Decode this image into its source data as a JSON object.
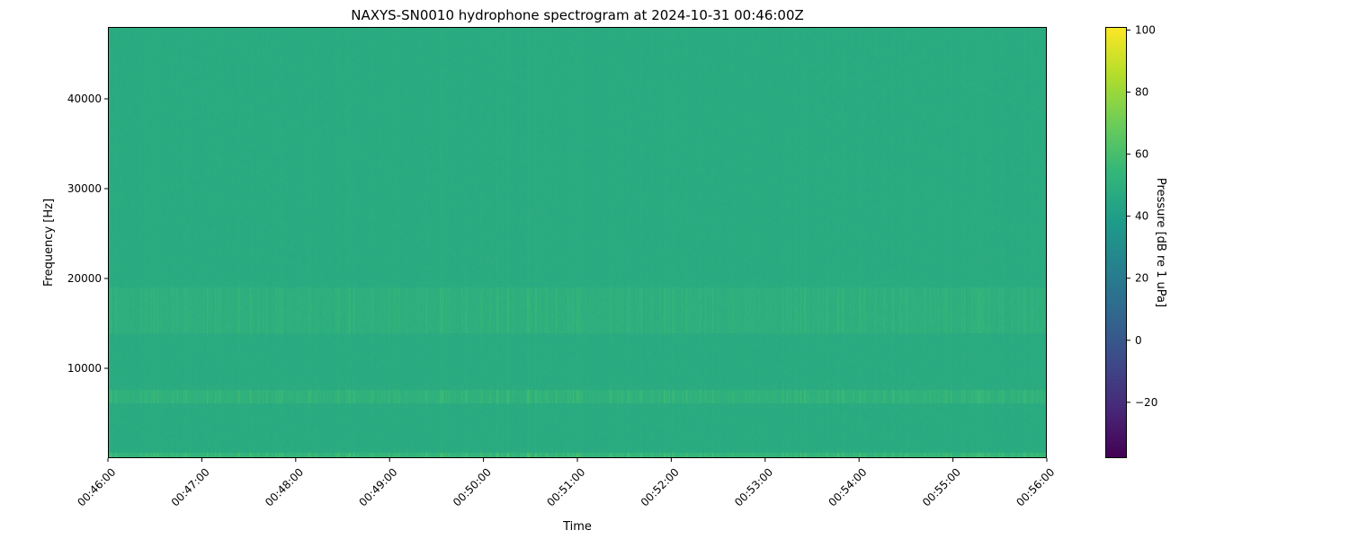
{
  "chart_data": {
    "type": "heatmap",
    "title": "NAXYS-SN0010 hydrophone spectrogram at 2024-10-31 00:46:00Z",
    "xlabel": "Time",
    "ylabel": "Frequency [Hz]",
    "colorbar_label": "Pressure [dB re 1 uPa]",
    "colormap": "viridis",
    "xlim": [
      "00:46:00",
      "00:56:00"
    ],
    "ylim": [
      0,
      48000
    ],
    "clim": [
      -38,
      101
    ],
    "x_ticks": [
      "00:46:00",
      "00:47:00",
      "00:48:00",
      "00:49:00",
      "00:50:00",
      "00:51:00",
      "00:52:00",
      "00:53:00",
      "00:54:00",
      "00:55:00",
      "00:56:00"
    ],
    "y_ticks": [
      10000,
      20000,
      30000,
      40000
    ],
    "y_tick_labels": [
      "10000",
      "20000",
      "30000",
      "40000"
    ],
    "colorbar_ticks": [
      -20,
      0,
      20,
      40,
      60,
      80,
      100
    ],
    "colorbar_tick_labels": [
      "−20",
      "0",
      "20",
      "40",
      "60",
      "80",
      "100"
    ],
    "background_level_db": 47,
    "bands": [
      {
        "freq_range_hz": [
          0,
          600
        ],
        "level_db": 60
      },
      {
        "freq_range_hz": [
          6200,
          7600
        ],
        "level_db": 56
      },
      {
        "freq_range_hz": [
          14000,
          19000
        ],
        "level_db": 53
      }
    ],
    "grid": false
  }
}
